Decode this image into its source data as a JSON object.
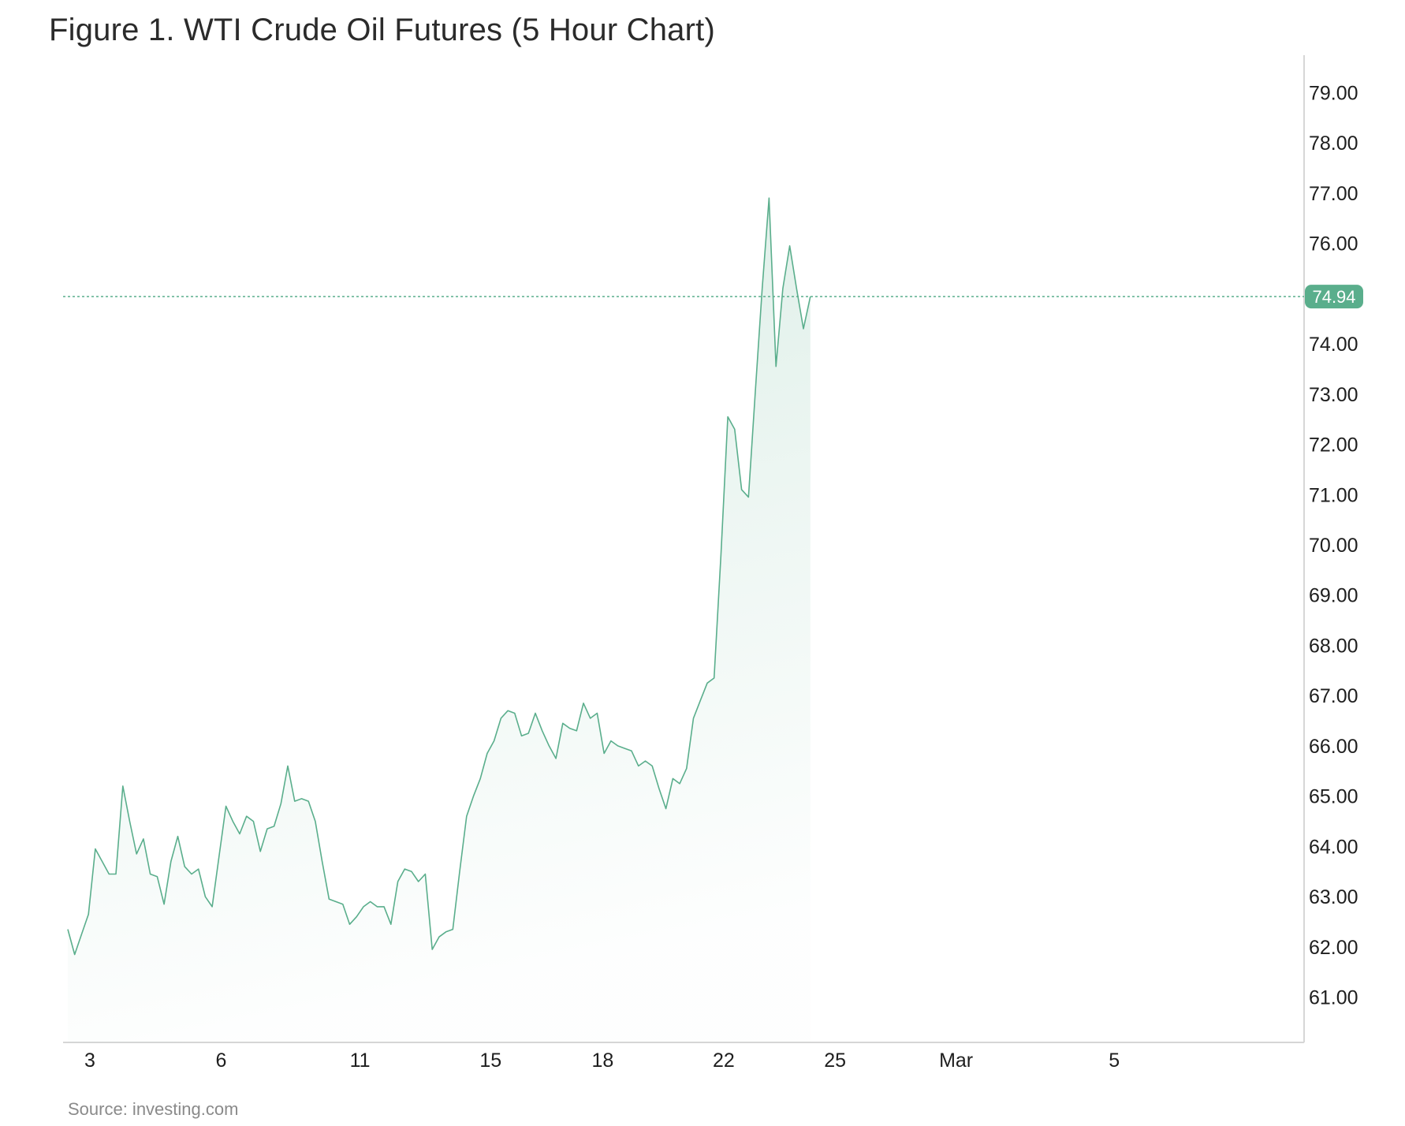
{
  "title": "Figure 1. WTI Crude Oil Futures (5 Hour Chart)",
  "source": "Source: investing.com",
  "colors": {
    "line": "#5aae8c",
    "fill": "#5aae8c",
    "badge": "#5aae8c",
    "axis": "#d6d6d6"
  },
  "chart_data": {
    "type": "area",
    "title": "Figure 1. WTI Crude Oil Futures (5 Hour Chart)",
    "xlabel": "",
    "ylabel": "",
    "ylim": [
      60.1,
      79.9
    ],
    "y_axis_position": "right",
    "grid": false,
    "yticks": [
      "61.00",
      "62.00",
      "63.00",
      "64.00",
      "65.00",
      "66.00",
      "67.00",
      "68.00",
      "69.00",
      "70.00",
      "71.00",
      "72.00",
      "73.00",
      "74.00",
      "76.00",
      "77.00",
      "78.00",
      "79.00"
    ],
    "yticks_values": [
      61,
      62,
      63,
      64,
      65,
      66,
      67,
      68,
      69,
      70,
      71,
      72,
      73,
      74,
      76,
      77,
      78,
      79
    ],
    "xticks": [
      "3",
      "6",
      "11",
      "15",
      "18",
      "22",
      "25",
      "Mar",
      "5"
    ],
    "xticks_index": [
      3.2,
      22.3,
      42.5,
      61.5,
      77.8,
      95.4,
      111.6,
      129.2,
      152.2
    ],
    "last_value": 74.94,
    "last_value_label": "74.94",
    "x_index_range": [
      0,
      163
    ],
    "values": [
      62.35,
      61.85,
      62.25,
      62.65,
      63.95,
      63.7,
      63.45,
      63.45,
      65.2,
      64.5,
      63.85,
      64.15,
      63.45,
      63.4,
      62.85,
      63.7,
      64.2,
      63.6,
      63.45,
      63.55,
      63.0,
      62.8,
      63.8,
      64.8,
      64.5,
      64.25,
      64.6,
      64.5,
      63.9,
      64.35,
      64.4,
      64.85,
      65.6,
      64.9,
      64.95,
      64.9,
      64.5,
      63.7,
      62.95,
      62.9,
      62.85,
      62.45,
      62.6,
      62.8,
      62.9,
      62.8,
      62.8,
      62.45,
      63.3,
      63.55,
      63.5,
      63.3,
      63.45,
      61.95,
      62.2,
      62.3,
      62.35,
      63.5,
      64.6,
      65.0,
      65.35,
      65.85,
      66.1,
      66.55,
      66.7,
      66.65,
      66.2,
      66.25,
      66.65,
      66.3,
      66.0,
      65.75,
      66.45,
      66.35,
      66.3,
      66.85,
      66.55,
      66.65,
      65.85,
      66.1,
      66.0,
      65.95,
      65.9,
      65.6,
      65.7,
      65.6,
      65.15,
      64.75,
      65.35,
      65.25,
      65.55,
      66.55,
      66.9,
      67.25,
      67.35,
      69.8,
      72.55,
      72.3,
      71.1,
      70.95,
      73.05,
      75.1,
      76.9,
      73.55,
      75.1,
      75.95,
      75.1,
      74.3,
      74.94
    ]
  }
}
